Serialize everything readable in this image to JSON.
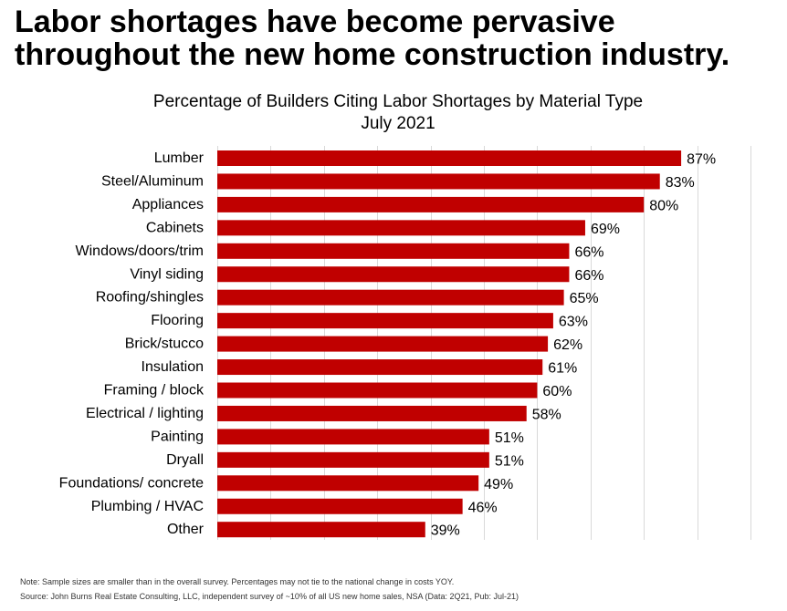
{
  "headline": {
    "line1": "Labor shortages have become pervasive",
    "line2": "throughout the new home construction industry."
  },
  "chart_data": {
    "type": "bar",
    "orientation": "horizontal",
    "title": "Percentage of Builders Citing Labor Shortages by Material Type",
    "subtitle": "July 2021",
    "xlabel": "",
    "ylabel": "",
    "xlim": [
      0,
      100
    ],
    "grid": true,
    "bar_color": "#c00000",
    "grid_color": "#d9d9d9",
    "categories": [
      "Lumber",
      "Steel/Aluminum",
      "Appliances",
      "Cabinets",
      "Windows/doors/trim",
      "Vinyl siding",
      "Roofing/shingles",
      "Flooring",
      "Brick/stucco",
      "Insulation",
      "Framing / block",
      "Electrical / lighting",
      "Painting",
      "Dryall",
      "Foundations/ concrete",
      "Plumbing / HVAC",
      "Other"
    ],
    "values": [
      87,
      83,
      80,
      69,
      66,
      66,
      65,
      63,
      62,
      61,
      60,
      58,
      51,
      51,
      49,
      46,
      39
    ],
    "value_labels": [
      "87%",
      "83%",
      "80%",
      "69%",
      "66%",
      "66%",
      "65%",
      "63%",
      "62%",
      "61%",
      "60%",
      "58%",
      "51%",
      "51%",
      "49%",
      "46%",
      "39%"
    ]
  },
  "footnotes": {
    "note": "Note: Sample sizes are smaller than in the overall survey. Percentages may not tie to the national change in costs YOY.",
    "source": "Source: John Burns Real Estate Consulting, LLC, independent survey of ~10% of all US new home sales, NSA (Data: 2Q21, Pub: Jul-21)"
  }
}
